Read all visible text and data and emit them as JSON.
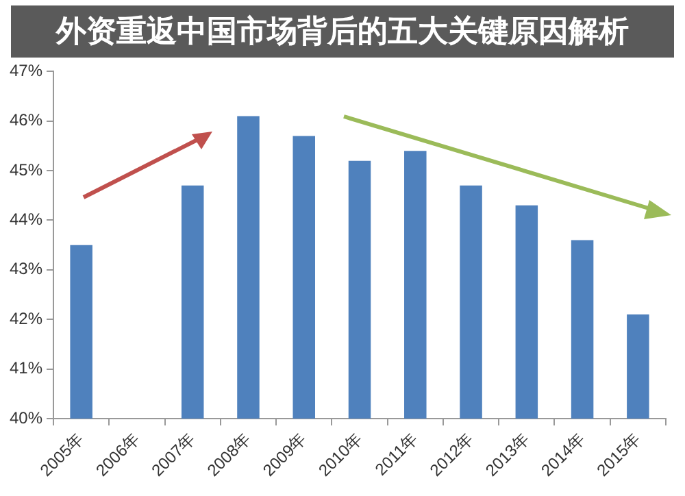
{
  "chart_data": {
    "type": "bar",
    "title": "外资重返中国市场背后的五大关键原因解析",
    "categories": [
      "2005年",
      "2006年",
      "2007年",
      "2008年",
      "2009年",
      "2010年",
      "2011年",
      "2012年",
      "2013年",
      "2014年",
      "2015年"
    ],
    "series": [
      {
        "color": "#4f81bd",
        "values": [
          43.5,
          null,
          44.7,
          46.1,
          45.7,
          45.2,
          45.4,
          44.7,
          44.3,
          43.6,
          42.1
        ]
      }
    ],
    "ylim": [
      40,
      47
    ],
    "yticks": [
      {
        "value": 40,
        "label": "40%"
      },
      {
        "value": 41,
        "label": "41%"
      },
      {
        "value": 42,
        "label": "42%"
      },
      {
        "value": 43,
        "label": "43%"
      },
      {
        "value": 44,
        "label": "44%"
      },
      {
        "value": 45,
        "label": "45%"
      },
      {
        "value": 46,
        "label": "46%"
      },
      {
        "value": 47,
        "label": "47%"
      }
    ],
    "grid": false,
    "legend": false
  }
}
